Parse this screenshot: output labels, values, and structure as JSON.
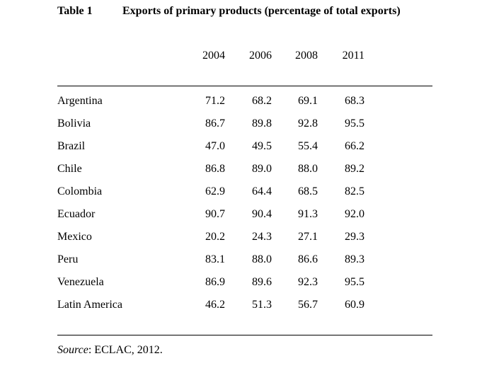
{
  "table": {
    "number": "Table 1",
    "title": "Exports of primary products (percentage of total exports)",
    "columns": [
      "2004",
      "2006",
      "2008",
      "2011"
    ],
    "rows": [
      {
        "name": "Argentina",
        "values": [
          "71.2",
          "68.2",
          "69.1",
          "68.3"
        ]
      },
      {
        "name": "Bolivia",
        "values": [
          "86.7",
          "89.8",
          "92.8",
          "95.5"
        ]
      },
      {
        "name": "Brazil",
        "values": [
          "47.0",
          "49.5",
          "55.4",
          "66.2"
        ]
      },
      {
        "name": "Chile",
        "values": [
          "86.8",
          "89.0",
          "88.0",
          "89.2"
        ]
      },
      {
        "name": "Colombia",
        "values": [
          "62.9",
          "64.4",
          "68.5",
          "82.5"
        ]
      },
      {
        "name": "Ecuador",
        "values": [
          "90.7",
          "90.4",
          "91.3",
          "92.0"
        ]
      },
      {
        "name": "Mexico",
        "values": [
          "20.2",
          "24.3",
          "27.1",
          "29.3"
        ]
      },
      {
        "name": "Peru",
        "values": [
          "83.1",
          "88.0",
          "86.6",
          "89.3"
        ]
      },
      {
        "name": "Venezuela",
        "values": [
          "86.9",
          "89.6",
          "92.3",
          "95.5"
        ]
      },
      {
        "name": "Latin America",
        "values": [
          "46.2",
          "51.3",
          "56.7",
          "60.9"
        ]
      }
    ],
    "source_label": "Source",
    "source_text": ": ECLAC, 2012."
  }
}
